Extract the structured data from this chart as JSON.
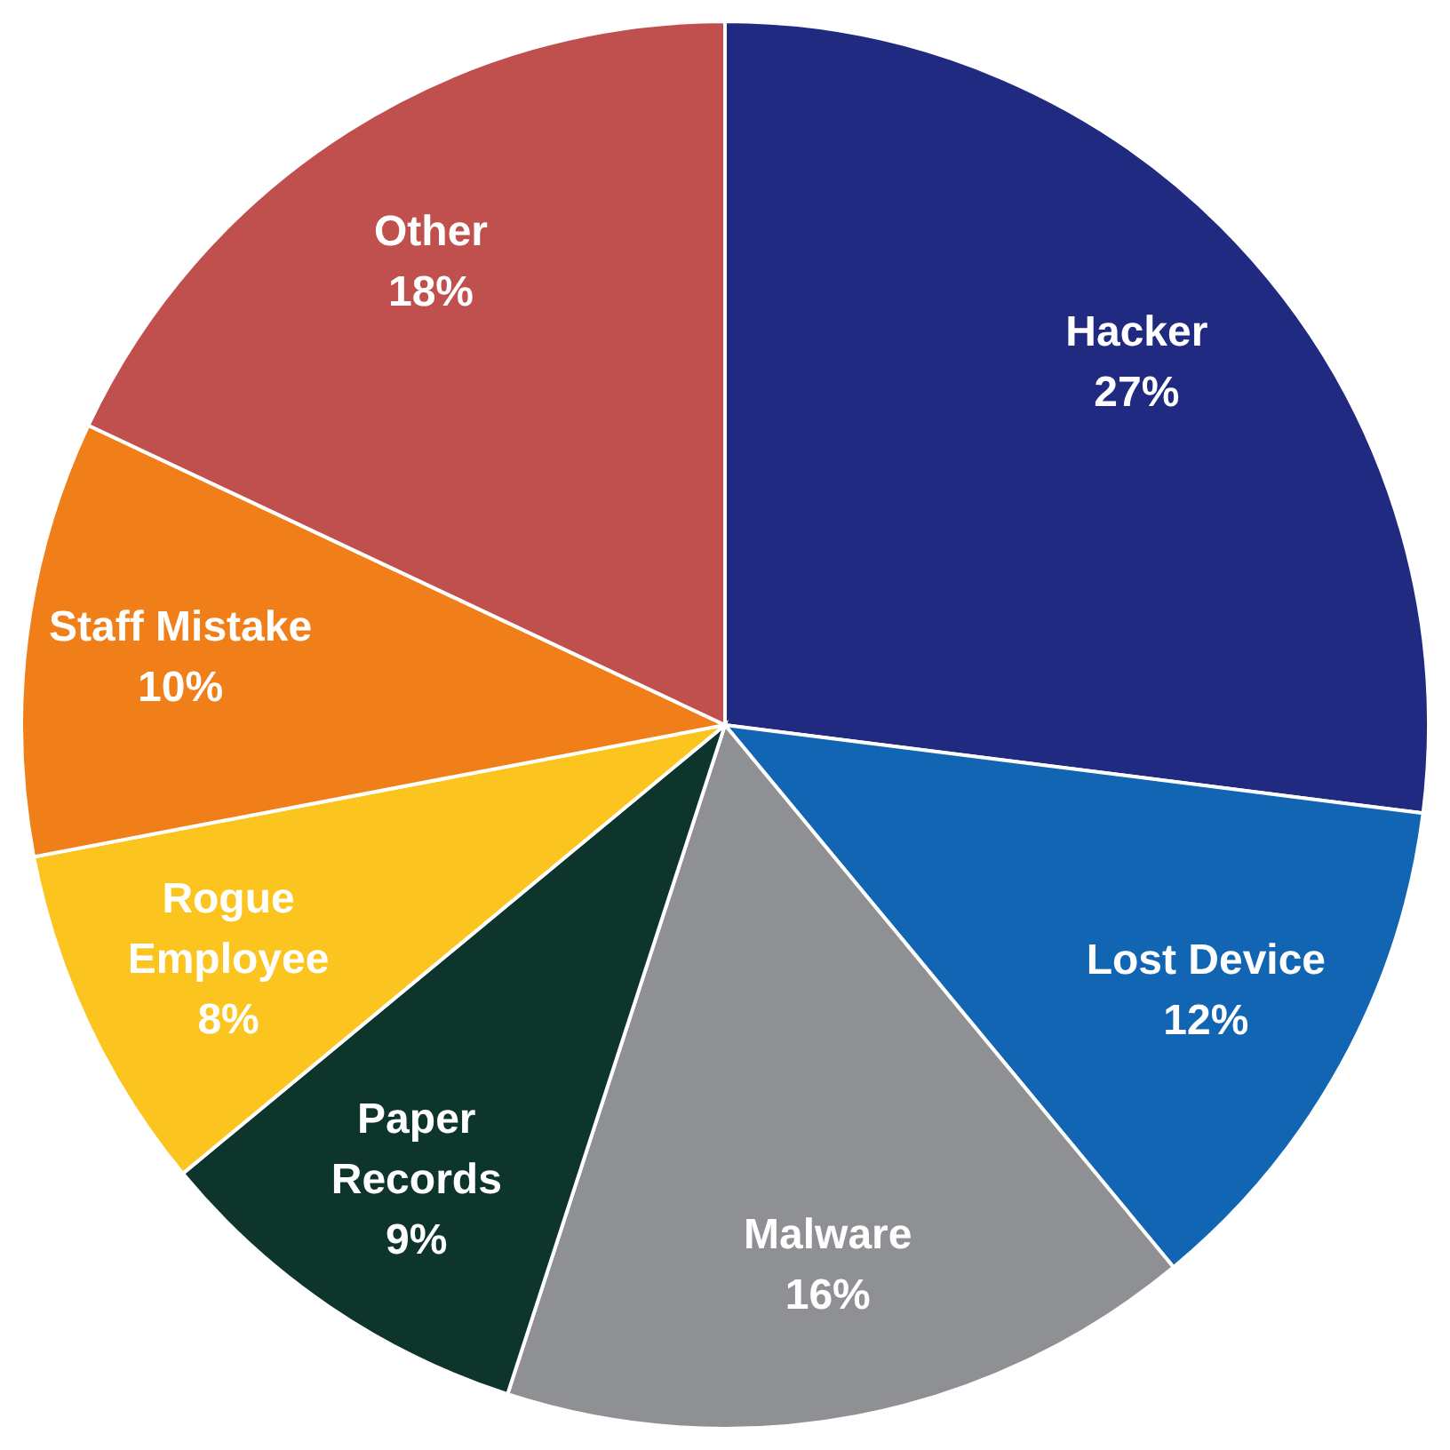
{
  "chart_data": {
    "type": "pie",
    "categories": [
      "Hacker",
      "Lost Device",
      "Malware",
      "Paper\nRecords",
      "Rogue\nEmployee",
      "Staff Mistake",
      "Other"
    ],
    "values": [
      27,
      12,
      16,
      9,
      8,
      10,
      18
    ],
    "colors": [
      "#1f2a80",
      "#1165b3",
      "#8e9094",
      "#0e352b",
      "#fbc41e",
      "#f07f1a",
      "#c0504d"
    ],
    "value_labels": [
      "27%",
      "12%",
      "16%",
      "9%",
      "8%",
      "10%",
      "18%"
    ]
  }
}
